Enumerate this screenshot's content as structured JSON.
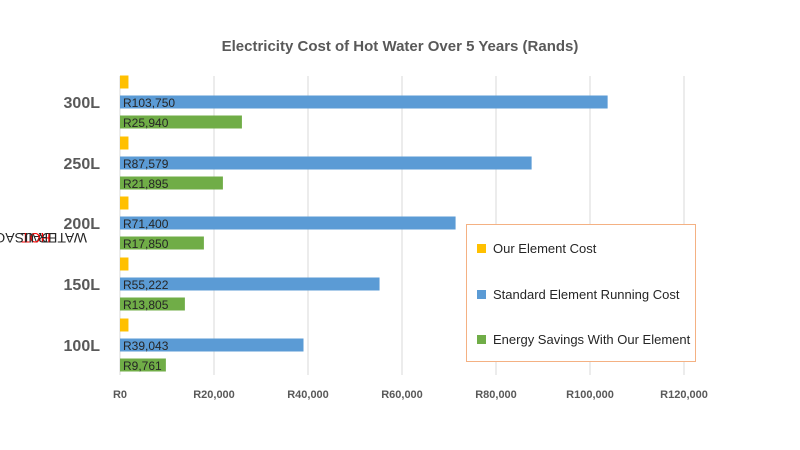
{
  "chart_data": {
    "type": "bar",
    "orientation": "horizontal",
    "title": "Electricity Cost of Hot Water Over 5 Years (Rands)",
    "ylabel_parts": [
      "DAIL ",
      "HOT",
      " WATER USAGE"
    ],
    "xlabel": "",
    "categories": [
      "300L",
      "250L",
      "200L",
      "150L",
      "100L"
    ],
    "series": [
      {
        "name": "Our Element Cost",
        "color": "#ffc000",
        "values": [
          1800,
          1800,
          1800,
          1800,
          1800
        ],
        "labels": [
          "",
          "",
          "",
          "",
          ""
        ]
      },
      {
        "name": "Standard Element Running Cost",
        "color": "#5b9bd5",
        "values": [
          103750,
          87579,
          71400,
          55222,
          39043
        ],
        "labels": [
          "R103,750",
          "R87,579",
          "R71,400",
          "R55,222",
          "R39,043"
        ]
      },
      {
        "name": "Energy Savings With Our Element",
        "color": "#70ad47",
        "values": [
          25940,
          21895,
          17850,
          13805,
          9761
        ],
        "labels": [
          "R25,940",
          "R21,895",
          "R17,850",
          "R13,805",
          "R9,761"
        ]
      }
    ],
    "xlim": [
      0,
      120000
    ],
    "ticks": [
      0,
      20000,
      40000,
      60000,
      80000,
      100000,
      120000
    ],
    "tick_labels": [
      "R0",
      "R20,000",
      "R40,000",
      "R60,000",
      "R80,000",
      "R100,000",
      "R120,000"
    ],
    "grid": true,
    "legend_position": "right"
  }
}
